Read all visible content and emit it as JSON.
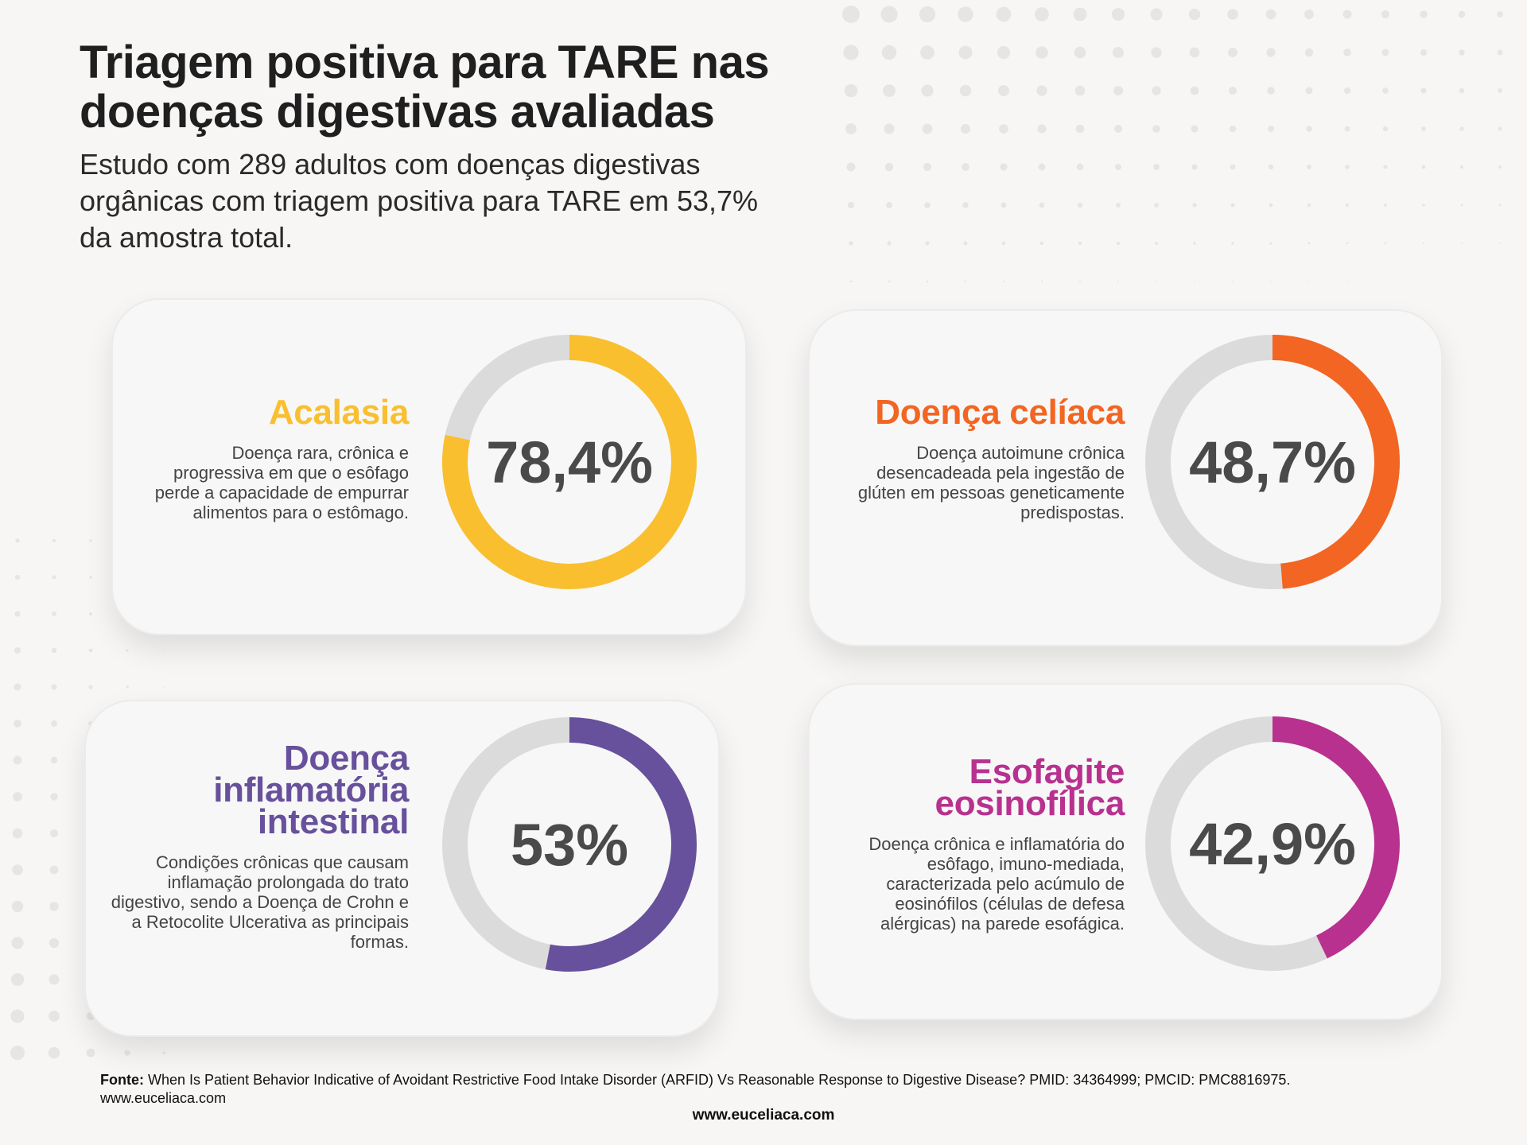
{
  "header": {
    "title_line1": "Triagem positiva para TARE nas",
    "title_line2": "doenças digestivas avaliadas",
    "subtitle": "Estudo com 289 adultos com doenças digestivas orgânicas com triagem positiva para TARE em 53,7% da amostra total."
  },
  "chart_data": [
    {
      "type": "pie",
      "title": "Acalasia",
      "value": 78.4,
      "label": "78,4%",
      "description": "Doença rara, crônica e progressiva em que o esôfago perde a capacidade de empurrar alimentos para o estômago.",
      "color": "#f9bf2e",
      "track_color": "#dbdbdb"
    },
    {
      "type": "pie",
      "title": "Doença celíaca",
      "value": 48.7,
      "label": "48,7%",
      "description": "Doença autoimune crônica desencadeada pela ingestão de glúten em pessoas geneticamente predispostas.",
      "color": "#f26522",
      "track_color": "#dbdbdb"
    },
    {
      "type": "pie",
      "title": "Doença inflamatória intestinal",
      "value": 53,
      "label": "53%",
      "description": "Condições crônicas que causam inflamação prolongada do trato digestivo, sendo a Doença de Crohn e a Retocolite Ulcerativa as principais formas.",
      "color": "#67509c",
      "track_color": "#dbdbdb"
    },
    {
      "type": "pie",
      "title": "Esofagite eosinofílica",
      "value": 42.9,
      "label": "42,9%",
      "description": "Doença crônica e inflamatória do esôfago, imuno-mediada, caracterizada pelo acúmulo de eosinófilos (células de defesa alérgicas) na parede esofágica.",
      "color": "#b8318f",
      "track_color": "#dbdbdb"
    }
  ],
  "footer": {
    "source_label": "Fonte:",
    "source_text": "When Is Patient Behavior Indicative of Avoidant Restrictive Food Intake Disorder (ARFID) Vs Reasonable Response to Digestive Disease? PMID: 34364999; PMCID: PMC8816975. www.euceliaca.com",
    "site": "www.euceliaca.com"
  }
}
